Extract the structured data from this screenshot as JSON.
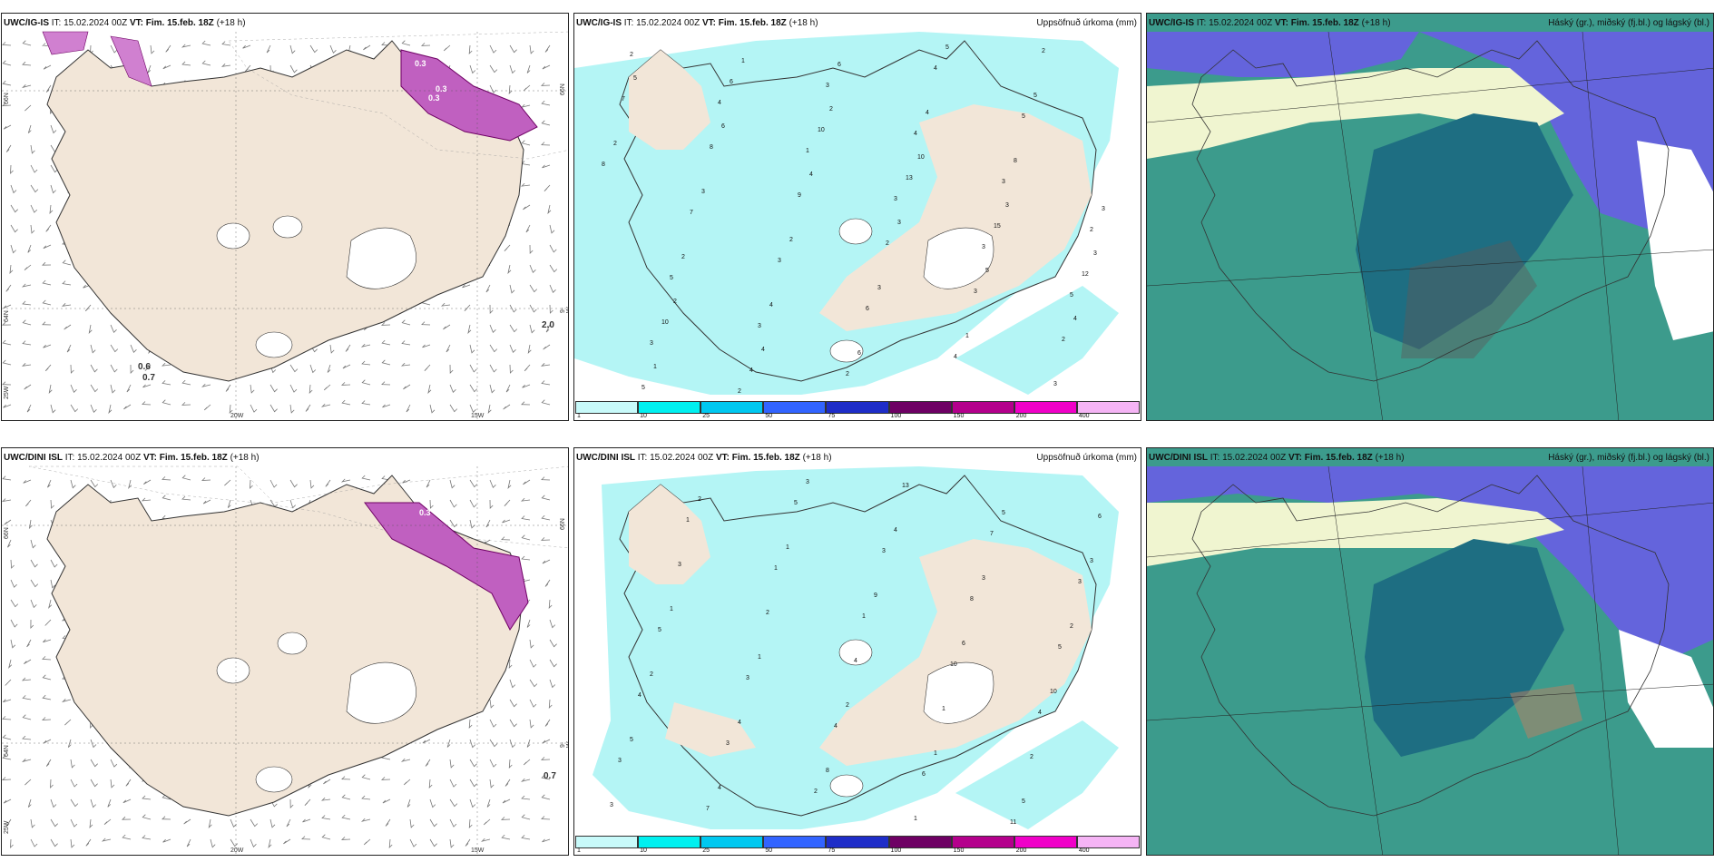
{
  "rows": [
    {
      "model": "UWC/IG-IS",
      "panels": [
        {
          "type": "wind",
          "header_it_label": "IT:",
          "header_it": "15.02.2024 00Z",
          "header_vt_label": "VT:",
          "header_vt": "Fim. 15.feb. 18Z",
          "header_lead": "(+18 h)",
          "right_title": "",
          "annotations": [
            "0.3",
            "0.3",
            "0.3",
            "0.3",
            "0.6",
            "0.7",
            "2.0"
          ]
        },
        {
          "type": "precip",
          "header_it_label": "IT:",
          "header_it": "15.02.2024 00Z",
          "header_vt_label": "VT:",
          "header_vt": "Fim. 15.feb. 18Z",
          "header_lead": "(+18 h)",
          "right_title": "Uppsöfnuð úrkoma (mm)"
        },
        {
          "type": "cloud",
          "header_it_label": "IT:",
          "header_it": "15.02.2024 00Z",
          "header_vt_label": "VT:",
          "header_vt": "Fim. 15.feb. 18Z",
          "header_lead": "(+18 h)",
          "right_title": "Háský (gr.), miðský (fj.bl.) og lágský (bl.)"
        }
      ]
    },
    {
      "model": "UWC/DINI ISL",
      "panels": [
        {
          "type": "wind",
          "header_it_label": "IT:",
          "header_it": "15.02.2024 00Z",
          "header_vt_label": "VT:",
          "header_vt": "Fim. 15.feb. 18Z",
          "header_lead": "(+18 h)",
          "right_title": "",
          "annotations": [
            "0.3",
            "0.3",
            "0.7"
          ]
        },
        {
          "type": "precip",
          "header_it_label": "IT:",
          "header_it": "15.02.2024 00Z",
          "header_vt_label": "VT:",
          "header_vt": "Fim. 15.feb. 18Z",
          "header_lead": "(+18 h)",
          "right_title": "Uppsöfnuð úrkoma (mm)"
        },
        {
          "type": "cloud",
          "header_it_label": "IT:",
          "header_it": "15.02.2024 00Z",
          "header_vt_label": "VT:",
          "header_vt": "Fim. 15.feb. 18Z",
          "header_lead": "(+18 h)",
          "right_title": "Háský (gr.), miðský (fj.bl.) og lágský (bl.)"
        }
      ]
    }
  ],
  "grid_labels": {
    "lat_66": "66N",
    "lat_64": "64N",
    "lon_25": "25W",
    "lon_20": "20W",
    "lon_15": "15W",
    "lon_9": "9-W",
    "lat_66_right": "66N"
  },
  "colorbar": {
    "labels": [
      "1",
      "10",
      "25",
      "50",
      "75",
      "100",
      "150",
      "200",
      "400"
    ],
    "colors": [
      "#c8fafa",
      "#00f0f0",
      "#00c8f0",
      "#3264ff",
      "#1e2dc8",
      "#6e0064",
      "#b4008c",
      "#f000c8",
      "#f5b4f5"
    ]
  },
  "colors": {
    "land": "#f2e6d8",
    "sea": "#ffffff",
    "precip_light": "#b4f5f5",
    "cloud_high": "#6464dc",
    "cloud_low": "#3c9b8c",
    "cloud_mid": "#1e6e82"
  },
  "precip_numbers_top": [
    "2",
    "4",
    "1",
    "3",
    "3",
    "5",
    "3",
    "2",
    "3",
    "4",
    "3",
    "2",
    "5",
    "3",
    "2",
    "4",
    "5",
    "8",
    "7",
    "3",
    "6",
    "4",
    "2",
    "7",
    "8",
    "9",
    "2",
    "3",
    "2",
    "5",
    "6",
    "10",
    "13",
    "15",
    "12",
    "10",
    "4",
    "6",
    "4",
    "8",
    "3",
    "2",
    "4",
    "6",
    "5",
    "5",
    "2",
    "3",
    "2",
    "3",
    "1",
    "3",
    "5",
    "6",
    "4",
    "3",
    "5",
    "4",
    "1",
    "1",
    "2",
    "10",
    "3",
    "3",
    "2",
    "4"
  ],
  "precip_numbers_bottom": [
    "1",
    "1",
    "1",
    "10",
    "4",
    "3",
    "7",
    "5",
    "3",
    "8",
    "5",
    "4",
    "3",
    "2",
    "13",
    "7",
    "3",
    "5",
    "3",
    "4",
    "6",
    "11",
    "6",
    "3",
    "2",
    "4",
    "1",
    "2",
    "3",
    "2",
    "1",
    "9",
    "6",
    "10",
    "5",
    "4",
    "3",
    "4",
    "3",
    "2",
    "2",
    "4",
    "8",
    "1",
    "5",
    "3",
    "1",
    "1",
    "2",
    "1",
    "5"
  ]
}
